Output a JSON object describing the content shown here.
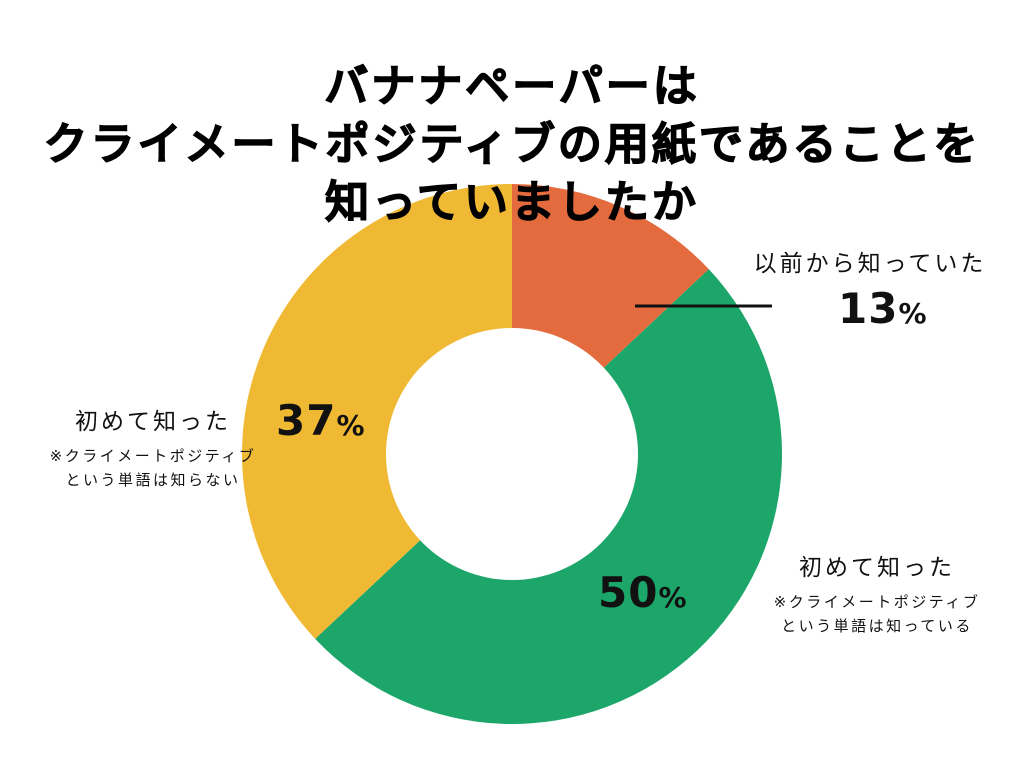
{
  "title": {
    "line1": "バナナペーパーは",
    "line2": "クライメートポジティブの用紙であることを",
    "line3": "知っていましたか"
  },
  "chart_data": {
    "type": "pie",
    "variant": "donut",
    "title": "バナナペーパーはクライメートポジティブの用紙であることを知っていましたか",
    "categories": [
      "以前から知っていた",
      "初めて知った ※クライメートポジティブという単語は知っている",
      "初めて知った ※クライメートポジティブという単語は知らない"
    ],
    "values": [
      13,
      50,
      37
    ],
    "unit": "%",
    "colors": [
      "#E36B3E",
      "#1DA669",
      "#F0B933"
    ],
    "start_angle": "12 o'clock, clockwise",
    "legend": "direct labels"
  },
  "slices": [
    {
      "key": "known",
      "label": "以前から知っていた",
      "note1": "",
      "note2": "",
      "pct_num": "13",
      "pct_sym": "%",
      "color": "#E36B3E"
    },
    {
      "key": "new_word_known",
      "label": "初めて知った",
      "note1": "※クライメートポジティブ",
      "note2": "という単語は知っている",
      "pct_num": "50",
      "pct_sym": "%",
      "color": "#1DA669"
    },
    {
      "key": "new_word_unknown",
      "label": "初めて知った",
      "note1": "※クライメートポジティブ",
      "note2": "という単語は知らない",
      "pct_num": "37",
      "pct_sym": "%",
      "color": "#F0B933"
    }
  ]
}
